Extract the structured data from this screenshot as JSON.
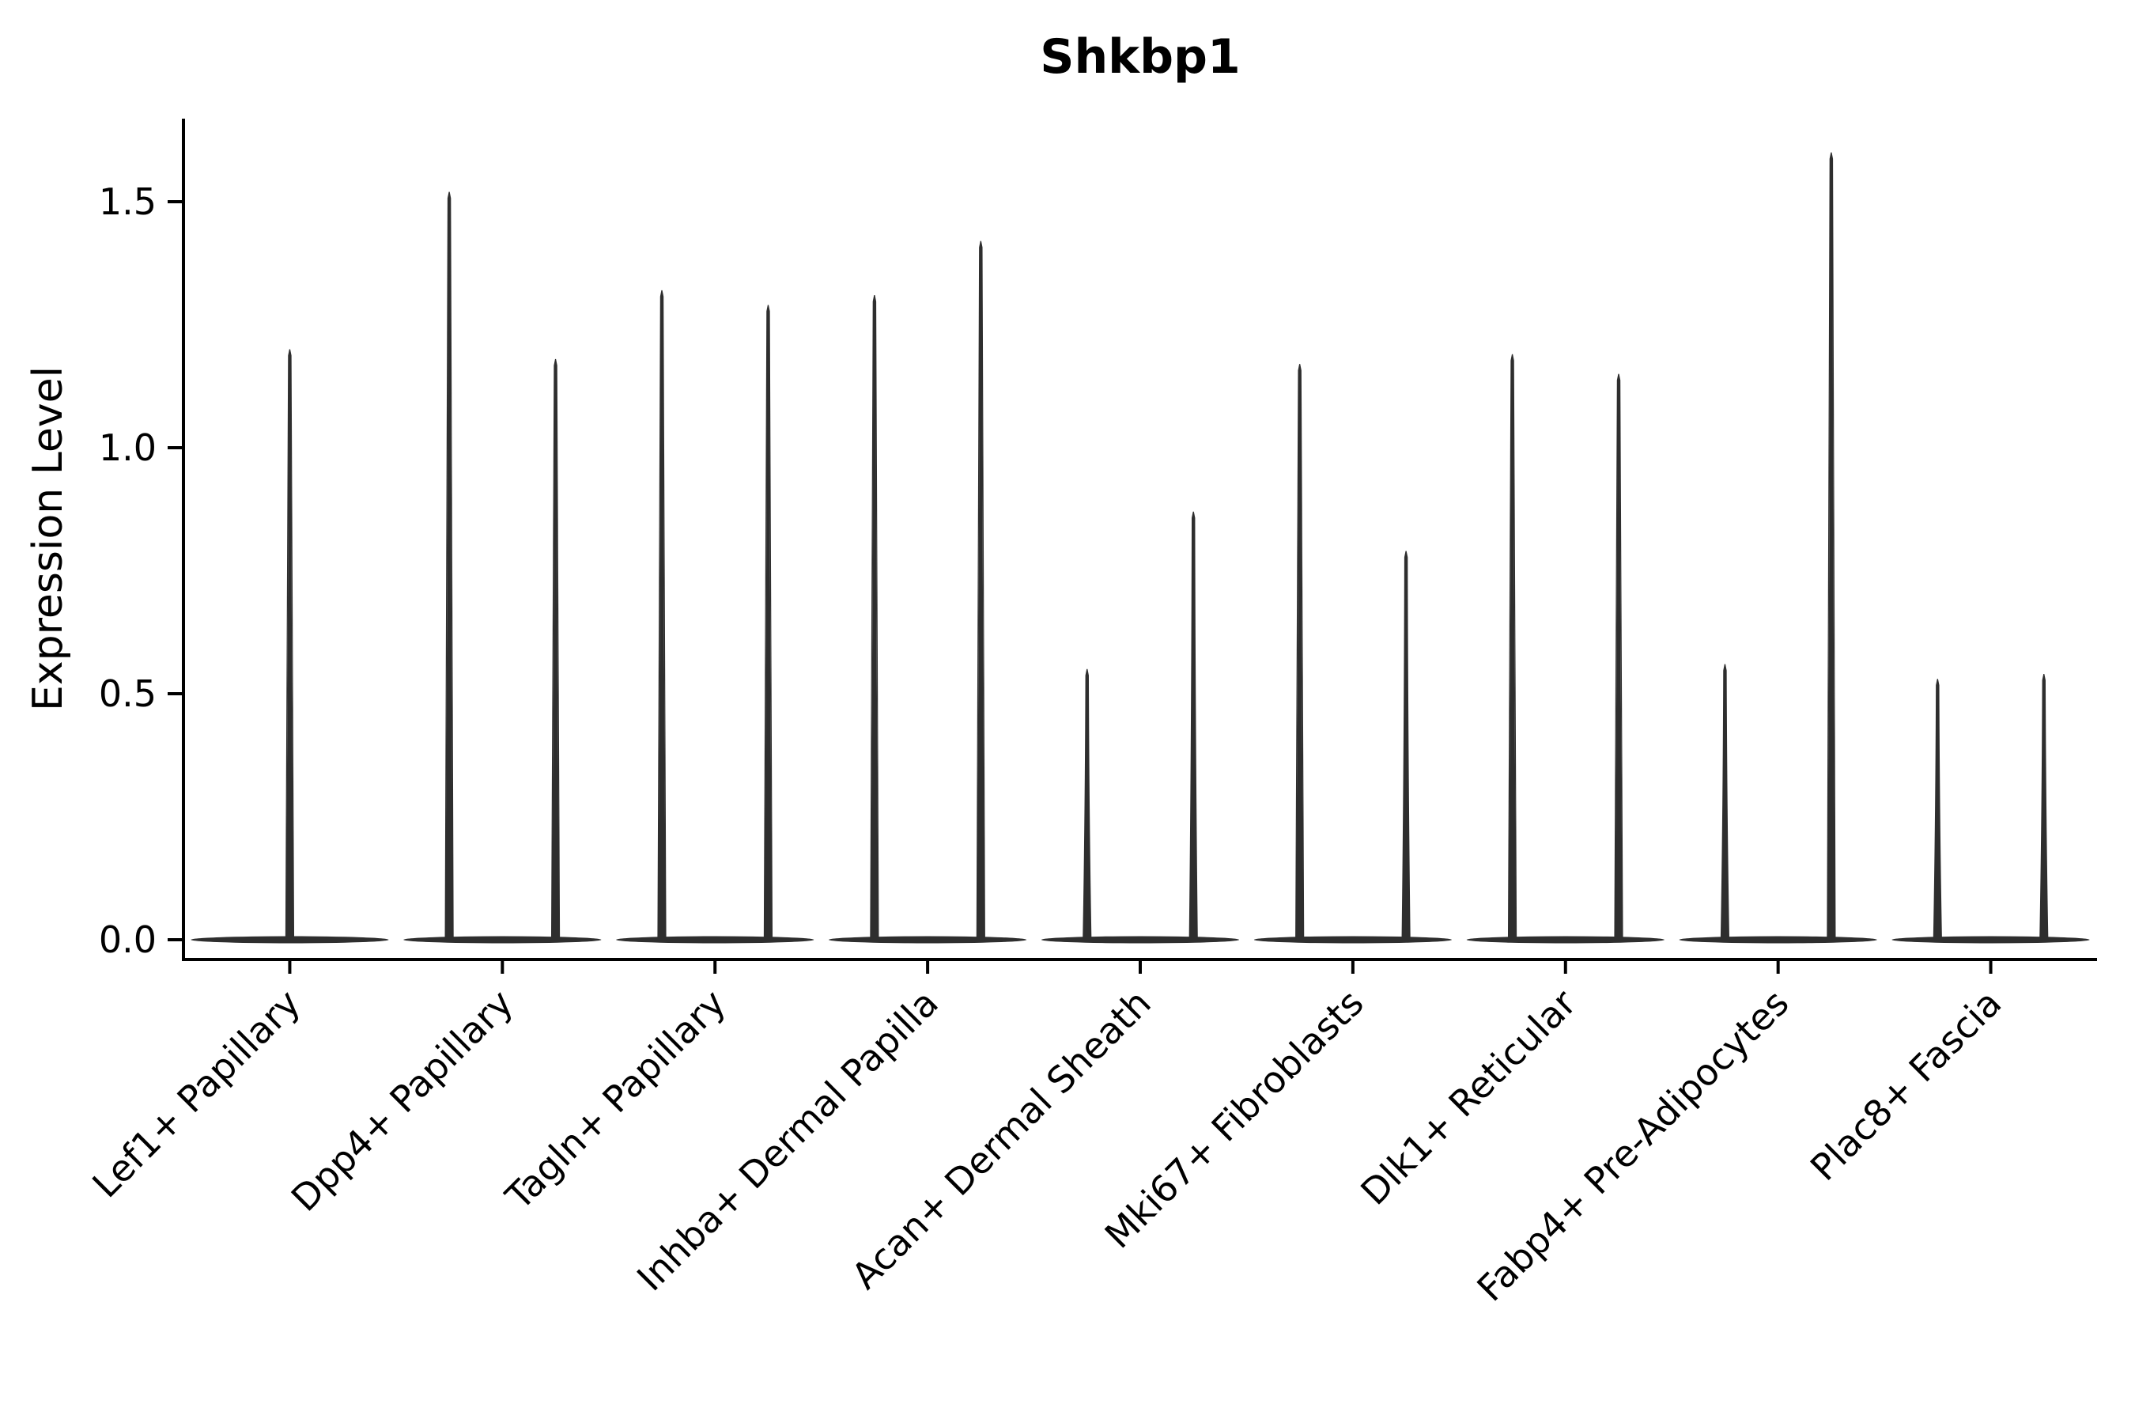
{
  "chart_data": {
    "type": "violin",
    "title": "Shkbp1",
    "ylabel": "Expression Level",
    "xlabel": "",
    "ylim": [
      0,
      1.67
    ],
    "grid": false,
    "legend": "none",
    "yticks": [
      {
        "label": "0.0",
        "value": 0.0
      },
      {
        "label": "0.5",
        "value": 0.5
      },
      {
        "label": "1.0",
        "value": 1.0
      },
      {
        "label": "1.5",
        "value": 1.5
      }
    ],
    "categories": [
      "Lef1+ Papillary",
      "Dpp4+ Papillary",
      "Tagln+ Papillary",
      "Inhba+ Dermal Papilla",
      "Acan+ Dermal Sheath",
      "Mki67+ Fibroblasts",
      "Dlk1+ Reticular",
      "Fabp4+ Pre-Adipocytes",
      "Plac8+ Fascia"
    ],
    "violins": [
      {
        "category": "Lef1+ Papillary",
        "positions": [
          {
            "offset": 0.5,
            "max": 1.2
          }
        ]
      },
      {
        "category": "Dpp4+ Papillary",
        "positions": [
          {
            "offset": 0.25,
            "max": 1.52
          },
          {
            "offset": 0.75,
            "max": 1.18
          }
        ]
      },
      {
        "category": "Tagln+ Papillary",
        "positions": [
          {
            "offset": 0.25,
            "max": 1.32
          },
          {
            "offset": 0.75,
            "max": 1.29
          }
        ]
      },
      {
        "category": "Inhba+ Dermal Papilla",
        "positions": [
          {
            "offset": 0.25,
            "max": 1.31
          },
          {
            "offset": 0.75,
            "max": 1.42
          }
        ]
      },
      {
        "category": "Acan+ Dermal Sheath",
        "positions": [
          {
            "offset": 0.25,
            "max": 0.55
          },
          {
            "offset": 0.75,
            "max": 0.87
          }
        ]
      },
      {
        "category": "Mki67+ Fibroblasts",
        "positions": [
          {
            "offset": 0.25,
            "max": 1.17
          },
          {
            "offset": 0.75,
            "max": 0.79
          }
        ]
      },
      {
        "category": "Dlk1+ Reticular",
        "positions": [
          {
            "offset": 0.25,
            "max": 1.19
          },
          {
            "offset": 0.75,
            "max": 1.15
          }
        ]
      },
      {
        "category": "Fabp4+ Pre-Adipocytes",
        "positions": [
          {
            "offset": 0.25,
            "max": 0.56
          },
          {
            "offset": 0.75,
            "max": 1.6
          }
        ]
      },
      {
        "category": "Plac8+ Fascia",
        "positions": [
          {
            "offset": 0.25,
            "max": 0.53
          },
          {
            "offset": 0.75,
            "max": 0.54
          }
        ]
      }
    ],
    "baseline_value": 0.0,
    "colors": {
      "violin": "#2e2e2e",
      "axis": "#000000",
      "background": "#ffffff"
    }
  }
}
